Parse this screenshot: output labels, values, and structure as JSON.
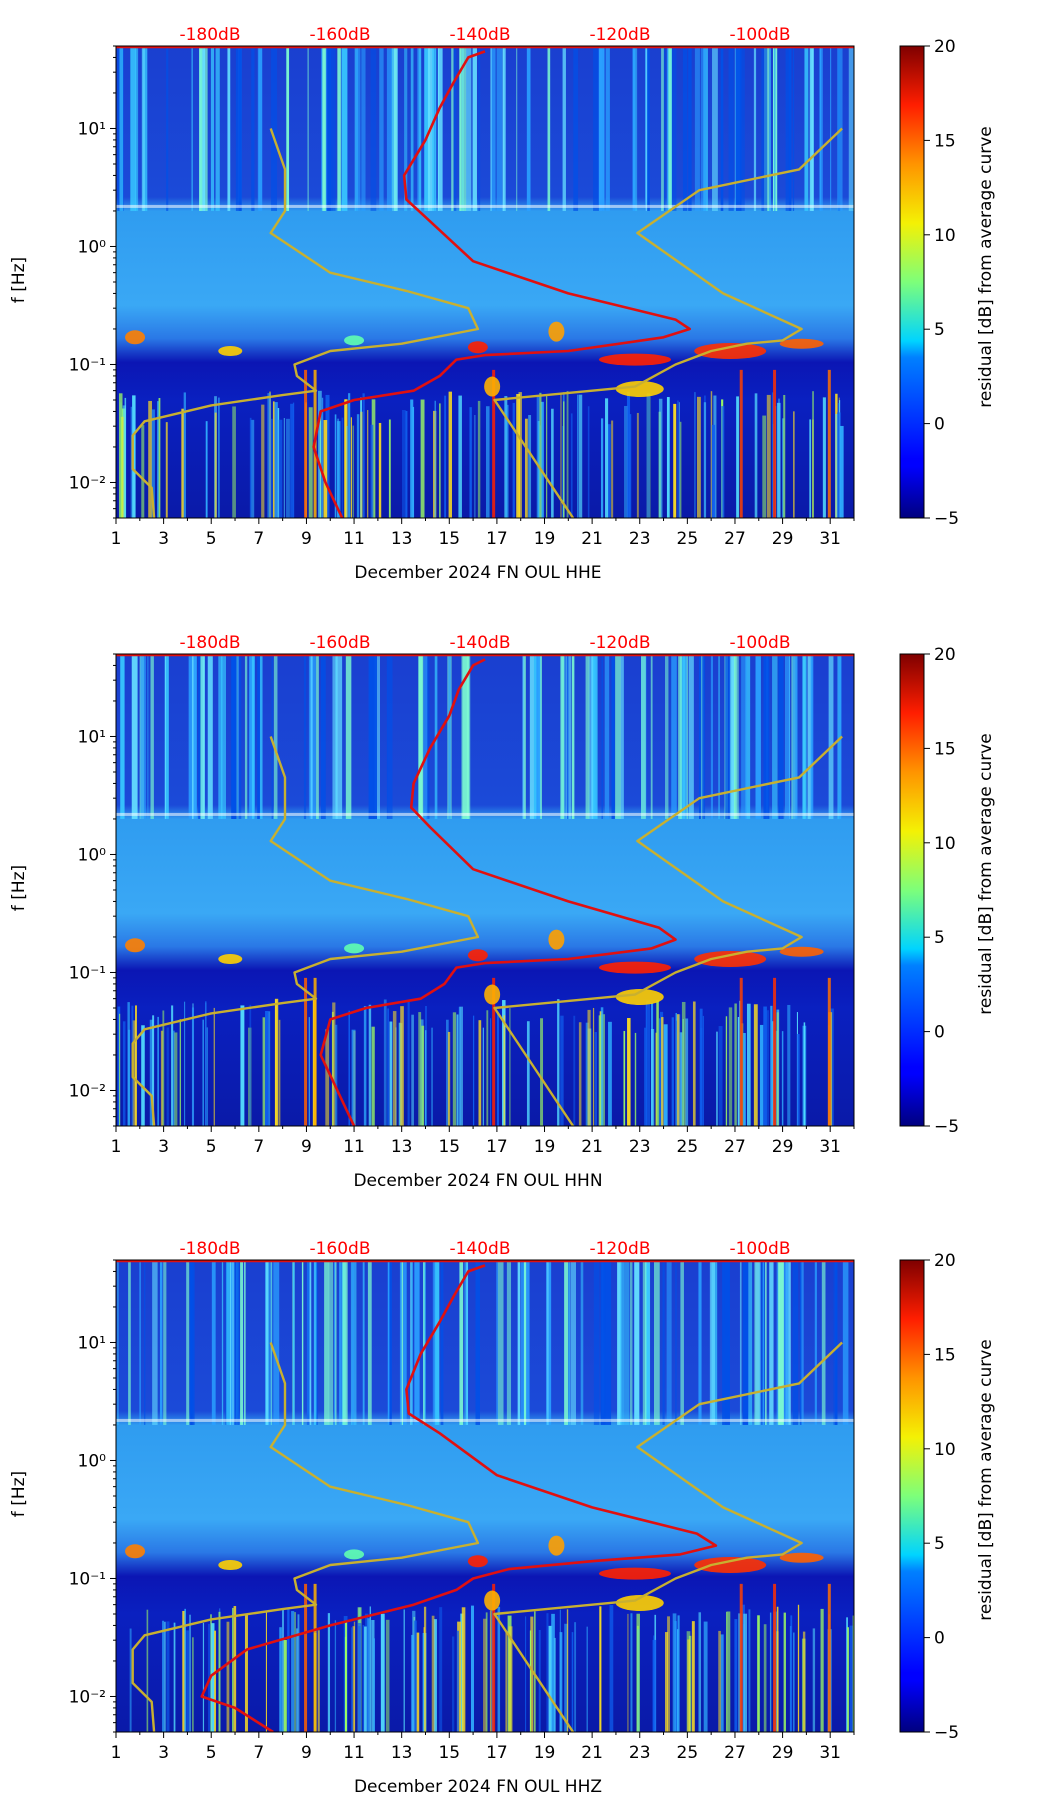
{
  "colors": {
    "median_curve": "#e01010",
    "model_curves": "#c8b030",
    "db_label": "#ff0000",
    "colormap": "jet"
  },
  "chart_data": [
    {
      "type": "heatmap",
      "title": "",
      "xlabel": "December 2024 FN OUL  HHE",
      "ylabel": "f [Hz]",
      "x_ticks": [
        "1",
        "3",
        "5",
        "7",
        "9",
        "11",
        "13",
        "15",
        "17",
        "19",
        "21",
        "23",
        "25",
        "27",
        "29",
        "31"
      ],
      "y_ticks": [
        "10⁻²",
        "10⁻¹",
        "10⁰",
        "10¹"
      ],
      "xlim": [
        1,
        32
      ],
      "ylim": [
        0.005,
        50
      ],
      "db_ticks": [
        {
          "label": "-180dB",
          "day": 4
        },
        {
          "label": "-160dB",
          "day": 10.2
        },
        {
          "label": "-140dB",
          "day": 16.4
        },
        {
          "label": "-120dB",
          "day": 22.6
        },
        {
          "label": "-100dB",
          "day": 28.8
        }
      ],
      "colorbar": {
        "label": "residual [dB] from average curve",
        "range": [
          -5,
          20
        ],
        "ticks": [
          "20",
          "15",
          "10",
          "5",
          "0",
          "−5"
        ]
      },
      "series": [
        {
          "name": "model_low",
          "points": [
            [
              2.6,
              0.005
            ],
            [
              2.5,
              0.009
            ],
            [
              1.7,
              0.013
            ],
            [
              1.7,
              0.025
            ],
            [
              2.2,
              0.033
            ],
            [
              5,
              0.045
            ],
            [
              8,
              0.055
            ],
            [
              9.4,
              0.06
            ],
            [
              8.6,
              0.08
            ],
            [
              8.5,
              0.1
            ],
            [
              10,
              0.13
            ],
            [
              13,
              0.15
            ],
            [
              16.2,
              0.2
            ],
            [
              15.8,
              0.3
            ],
            [
              13.2,
              0.42
            ],
            [
              10,
              0.6
            ],
            [
              7.5,
              1.3
            ],
            [
              8.1,
              2
            ],
            [
              8.1,
              4.5
            ],
            [
              7.5,
              10
            ]
          ]
        },
        {
          "name": "model_high",
          "points": [
            [
              20.2,
              0.005
            ],
            [
              16.9,
              0.05
            ],
            [
              21,
              0.06
            ],
            [
              22.8,
              0.065
            ],
            [
              24.5,
              0.1
            ],
            [
              26,
              0.13
            ],
            [
              27.5,
              0.15
            ],
            [
              29,
              0.16
            ],
            [
              29.8,
              0.2
            ],
            [
              26.5,
              0.4
            ],
            [
              22.9,
              1.3
            ],
            [
              25.5,
              3
            ],
            [
              29.7,
              4.5
            ],
            [
              31.5,
              10
            ]
          ]
        },
        {
          "name": "median",
          "points": [
            [
              10.5,
              0.005
            ],
            [
              9.8,
              0.01
            ],
            [
              9.3,
              0.02
            ],
            [
              9.6,
              0.04
            ],
            [
              11,
              0.05
            ],
            [
              13.5,
              0.06
            ],
            [
              14.6,
              0.08
            ],
            [
              15.3,
              0.11
            ],
            [
              16.5,
              0.12
            ],
            [
              20,
              0.13
            ],
            [
              24,
              0.17
            ],
            [
              25.1,
              0.2
            ],
            [
              24.5,
              0.24
            ],
            [
              20,
              0.4
            ],
            [
              16,
              0.75
            ],
            [
              14.1,
              1.7
            ],
            [
              13.2,
              2.5
            ],
            [
              13.1,
              4
            ],
            [
              14,
              8
            ],
            [
              14.6,
              15
            ],
            [
              15.2,
              25
            ],
            [
              15.8,
              40
            ],
            [
              16.5,
              45
            ]
          ]
        }
      ]
    },
    {
      "type": "heatmap",
      "title": "",
      "xlabel": "December 2024 FN OUL  HHN",
      "ylabel": "f [Hz]",
      "x_ticks": [
        "1",
        "3",
        "5",
        "7",
        "9",
        "11",
        "13",
        "15",
        "17",
        "19",
        "21",
        "23",
        "25",
        "27",
        "29",
        "31"
      ],
      "y_ticks": [
        "10⁻²",
        "10⁻¹",
        "10⁰",
        "10¹"
      ],
      "xlim": [
        1,
        32
      ],
      "ylim": [
        0.005,
        50
      ],
      "db_ticks": [
        {
          "label": "-180dB",
          "day": 4
        },
        {
          "label": "-160dB",
          "day": 10.2
        },
        {
          "label": "-140dB",
          "day": 16.4
        },
        {
          "label": "-120dB",
          "day": 22.6
        },
        {
          "label": "-100dB",
          "day": 28.8
        }
      ],
      "colorbar": {
        "label": "residual [dB] from average curve",
        "range": [
          -5,
          20
        ],
        "ticks": [
          "20",
          "15",
          "10",
          "5",
          "0",
          "−5"
        ]
      },
      "series": [
        {
          "name": "model_low",
          "points": [
            [
              2.6,
              0.005
            ],
            [
              2.5,
              0.009
            ],
            [
              1.7,
              0.013
            ],
            [
              1.7,
              0.025
            ],
            [
              2.2,
              0.033
            ],
            [
              5,
              0.045
            ],
            [
              8,
              0.055
            ],
            [
              9.4,
              0.06
            ],
            [
              8.6,
              0.08
            ],
            [
              8.5,
              0.1
            ],
            [
              10,
              0.13
            ],
            [
              13,
              0.15
            ],
            [
              16.2,
              0.2
            ],
            [
              15.8,
              0.3
            ],
            [
              13.2,
              0.42
            ],
            [
              10,
              0.6
            ],
            [
              7.5,
              1.3
            ],
            [
              8.1,
              2
            ],
            [
              8.1,
              4.5
            ],
            [
              7.5,
              10
            ]
          ]
        },
        {
          "name": "model_high",
          "points": [
            [
              20.2,
              0.005
            ],
            [
              16.9,
              0.05
            ],
            [
              21,
              0.06
            ],
            [
              22.8,
              0.065
            ],
            [
              24.5,
              0.1
            ],
            [
              26,
              0.13
            ],
            [
              27.5,
              0.15
            ],
            [
              29,
              0.16
            ],
            [
              29.8,
              0.2
            ],
            [
              26.5,
              0.4
            ],
            [
              22.9,
              1.3
            ],
            [
              25.5,
              3
            ],
            [
              29.7,
              4.5
            ],
            [
              31.5,
              10
            ]
          ]
        },
        {
          "name": "median",
          "points": [
            [
              11,
              0.005
            ],
            [
              10.3,
              0.01
            ],
            [
              9.6,
              0.02
            ],
            [
              10,
              0.04
            ],
            [
              11.5,
              0.05
            ],
            [
              13.8,
              0.06
            ],
            [
              14.8,
              0.08
            ],
            [
              15.3,
              0.11
            ],
            [
              16.5,
              0.12
            ],
            [
              20,
              0.13
            ],
            [
              23.5,
              0.16
            ],
            [
              24.5,
              0.19
            ],
            [
              23.8,
              0.24
            ],
            [
              20,
              0.4
            ],
            [
              16,
              0.75
            ],
            [
              14.2,
              1.7
            ],
            [
              13.4,
              2.5
            ],
            [
              13.5,
              4
            ],
            [
              14.2,
              8
            ],
            [
              15,
              15
            ],
            [
              15.4,
              25
            ],
            [
              16,
              40
            ],
            [
              16.5,
              45
            ]
          ]
        }
      ]
    },
    {
      "type": "heatmap",
      "title": "",
      "xlabel": "December 2024 FN OUL  HHZ",
      "ylabel": "f [Hz]",
      "x_ticks": [
        "1",
        "3",
        "5",
        "7",
        "9",
        "11",
        "13",
        "15",
        "17",
        "19",
        "21",
        "23",
        "25",
        "27",
        "29",
        "31"
      ],
      "y_ticks": [
        "10⁻²",
        "10⁻¹",
        "10⁰",
        "10¹"
      ],
      "xlim": [
        1,
        32
      ],
      "ylim": [
        0.005,
        50
      ],
      "db_ticks": [
        {
          "label": "-180dB",
          "day": 4
        },
        {
          "label": "-160dB",
          "day": 10.2
        },
        {
          "label": "-140dB",
          "day": 16.4
        },
        {
          "label": "-120dB",
          "day": 22.6
        },
        {
          "label": "-100dB",
          "day": 28.8
        }
      ],
      "colorbar": {
        "label": "residual [dB] from average curve",
        "range": [
          -5,
          20
        ],
        "ticks": [
          "20",
          "15",
          "10",
          "5",
          "0",
          "−5"
        ]
      },
      "series": [
        {
          "name": "model_low",
          "points": [
            [
              2.6,
              0.005
            ],
            [
              2.5,
              0.009
            ],
            [
              1.7,
              0.013
            ],
            [
              1.7,
              0.025
            ],
            [
              2.2,
              0.033
            ],
            [
              5,
              0.045
            ],
            [
              8,
              0.055
            ],
            [
              9.4,
              0.06
            ],
            [
              8.6,
              0.08
            ],
            [
              8.5,
              0.1
            ],
            [
              10,
              0.13
            ],
            [
              13,
              0.15
            ],
            [
              16.2,
              0.2
            ],
            [
              15.8,
              0.3
            ],
            [
              13.2,
              0.42
            ],
            [
              10,
              0.6
            ],
            [
              7.5,
              1.3
            ],
            [
              8.1,
              2
            ],
            [
              8.1,
              4.5
            ],
            [
              7.5,
              10
            ]
          ]
        },
        {
          "name": "model_high",
          "points": [
            [
              20.2,
              0.005
            ],
            [
              16.9,
              0.05
            ],
            [
              21,
              0.06
            ],
            [
              22.8,
              0.065
            ],
            [
              24.5,
              0.1
            ],
            [
              26,
              0.13
            ],
            [
              27.5,
              0.15
            ],
            [
              29,
              0.16
            ],
            [
              29.8,
              0.2
            ],
            [
              26.5,
              0.4
            ],
            [
              22.9,
              1.3
            ],
            [
              25.5,
              3
            ],
            [
              29.7,
              4.5
            ],
            [
              31.5,
              10
            ]
          ]
        },
        {
          "name": "median",
          "points": [
            [
              7.6,
              0.005
            ],
            [
              6,
              0.008
            ],
            [
              4.6,
              0.01
            ],
            [
              5,
              0.015
            ],
            [
              6.5,
              0.025
            ],
            [
              10,
              0.04
            ],
            [
              13.5,
              0.06
            ],
            [
              15.3,
              0.08
            ],
            [
              16,
              0.1
            ],
            [
              17.5,
              0.12
            ],
            [
              21,
              0.14
            ],
            [
              24.7,
              0.16
            ],
            [
              26.2,
              0.19
            ],
            [
              25.4,
              0.24
            ],
            [
              21,
              0.4
            ],
            [
              17,
              0.75
            ],
            [
              14.6,
              1.7
            ],
            [
              13.3,
              2.5
            ],
            [
              13.2,
              4
            ],
            [
              13.8,
              8
            ],
            [
              14.6,
              15
            ],
            [
              15.2,
              25
            ],
            [
              15.8,
              40
            ],
            [
              16.5,
              45
            ]
          ]
        }
      ]
    }
  ]
}
